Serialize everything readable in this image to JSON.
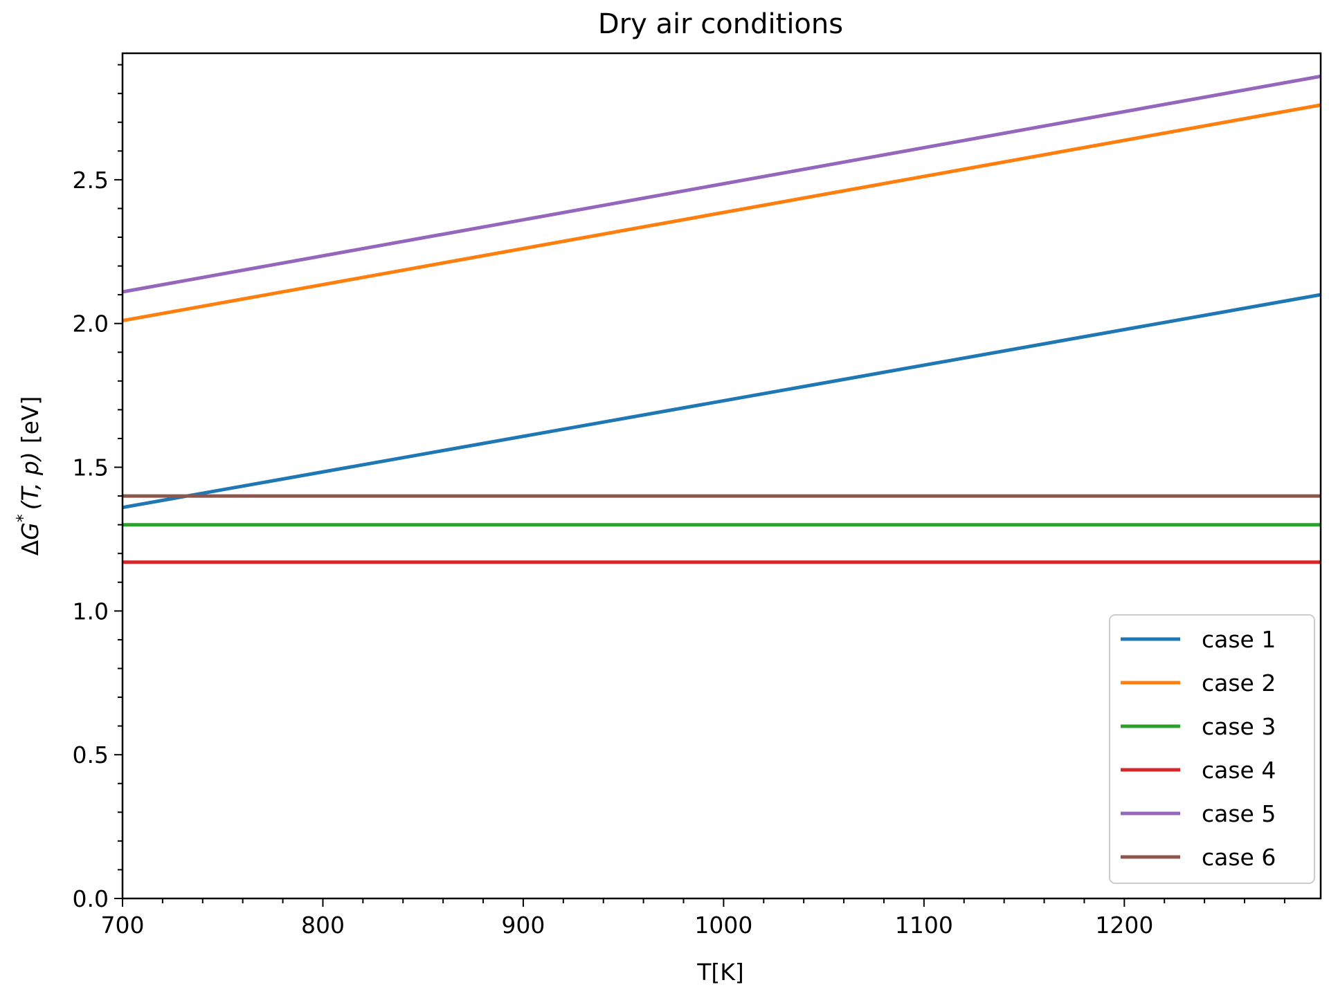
{
  "chart_data": {
    "type": "line",
    "title": "Dry air conditions",
    "xlabel": "T[K]",
    "ylabel": "ΔG*(T, p) [eV]",
    "ylabel_parts": {
      "delta": "Δ",
      "G": "G",
      "star": "*",
      "args": "(T, p)",
      "unit": "[eV]"
    },
    "xlim": [
      700,
      1298
    ],
    "ylim": [
      0,
      2.94
    ],
    "xticks": [
      700,
      800,
      900,
      1000,
      1100,
      1200
    ],
    "yticks": [
      0.0,
      0.5,
      1.0,
      1.5,
      2.0,
      2.5
    ],
    "xtick_labels": [
      "700",
      "800",
      "900",
      "1000",
      "1100",
      "1200"
    ],
    "ytick_labels": [
      "0.0",
      "0.5",
      "1.0",
      "1.5",
      "2.0",
      "2.5"
    ],
    "grid": false,
    "legend_position": "lower-right",
    "series": [
      {
        "name": "case 1",
        "color": "#1f77b4",
        "x": [
          700,
          1298
        ],
        "y": [
          1.36,
          2.1
        ]
      },
      {
        "name": "case 2",
        "color": "#ff7f0e",
        "x": [
          700,
          1298
        ],
        "y": [
          2.01,
          2.76
        ]
      },
      {
        "name": "case 3",
        "color": "#2ca02c",
        "x": [
          700,
          1298
        ],
        "y": [
          1.3,
          1.3
        ]
      },
      {
        "name": "case 4",
        "color": "#d62728",
        "x": [
          700,
          1298
        ],
        "y": [
          1.17,
          1.17
        ]
      },
      {
        "name": "case 5",
        "color": "#9467bd",
        "x": [
          700,
          1298
        ],
        "y": [
          2.11,
          2.86
        ]
      },
      {
        "name": "case 6",
        "color": "#8c564b",
        "x": [
          700,
          1298
        ],
        "y": [
          1.4,
          1.4
        ]
      }
    ]
  }
}
